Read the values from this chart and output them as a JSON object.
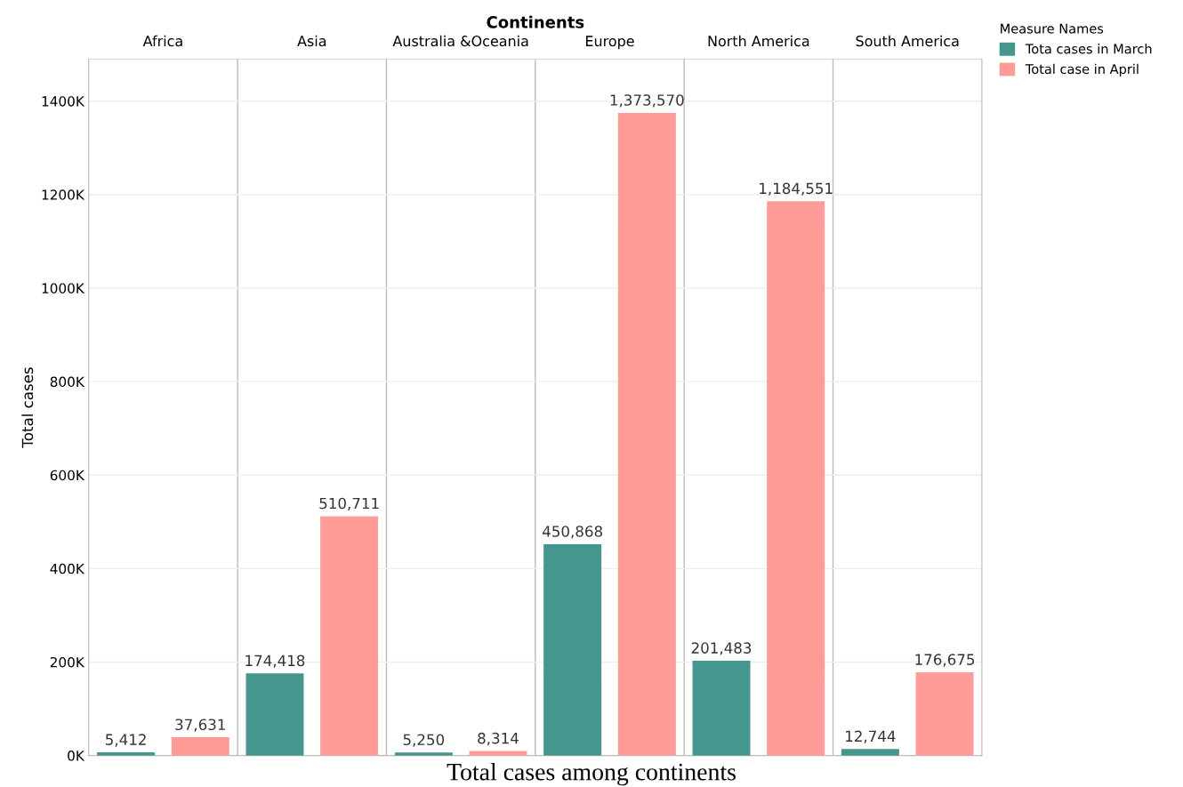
{
  "chart_data": {
    "type": "bar",
    "xlabel": "Continents",
    "ylabel": "Total cases",
    "categories": [
      "Africa",
      "Asia",
      "Australia &Oceania",
      "Europe",
      "North America",
      "South America"
    ],
    "series": [
      {
        "name": "Tota cases in March",
        "color": "#45968f",
        "values": [
          5412,
          174418,
          5250,
          450868,
          201483,
          12744
        ],
        "value_labels": [
          "5,412",
          "174,418",
          "5,250",
          "450,868",
          "201,483",
          "12,744"
        ]
      },
      {
        "name": "Total case in April",
        "color": "#ff9c98",
        "values": [
          37631,
          510711,
          8314,
          1373570,
          1184551,
          176675
        ],
        "value_labels": [
          "37,631",
          "510,711",
          "8,314",
          "1,373,570",
          "1,184,551",
          "176,675"
        ]
      }
    ],
    "ylim": [
      0,
      1490000
    ],
    "yticks": [
      {
        "value": 0,
        "label": "0K"
      },
      {
        "value": 200000,
        "label": "200K"
      },
      {
        "value": 400000,
        "label": "400K"
      },
      {
        "value": 600000,
        "label": "600K"
      },
      {
        "value": 800000,
        "label": "800K"
      },
      {
        "value": 1000000,
        "label": "1000K"
      },
      {
        "value": 1200000,
        "label": "1200K"
      },
      {
        "value": 1400000,
        "label": "1400K"
      }
    ],
    "grid": "y",
    "legend": "top right",
    "legend_title": "Measure Names",
    "annotations": [
      "Total cases among continents"
    ]
  }
}
